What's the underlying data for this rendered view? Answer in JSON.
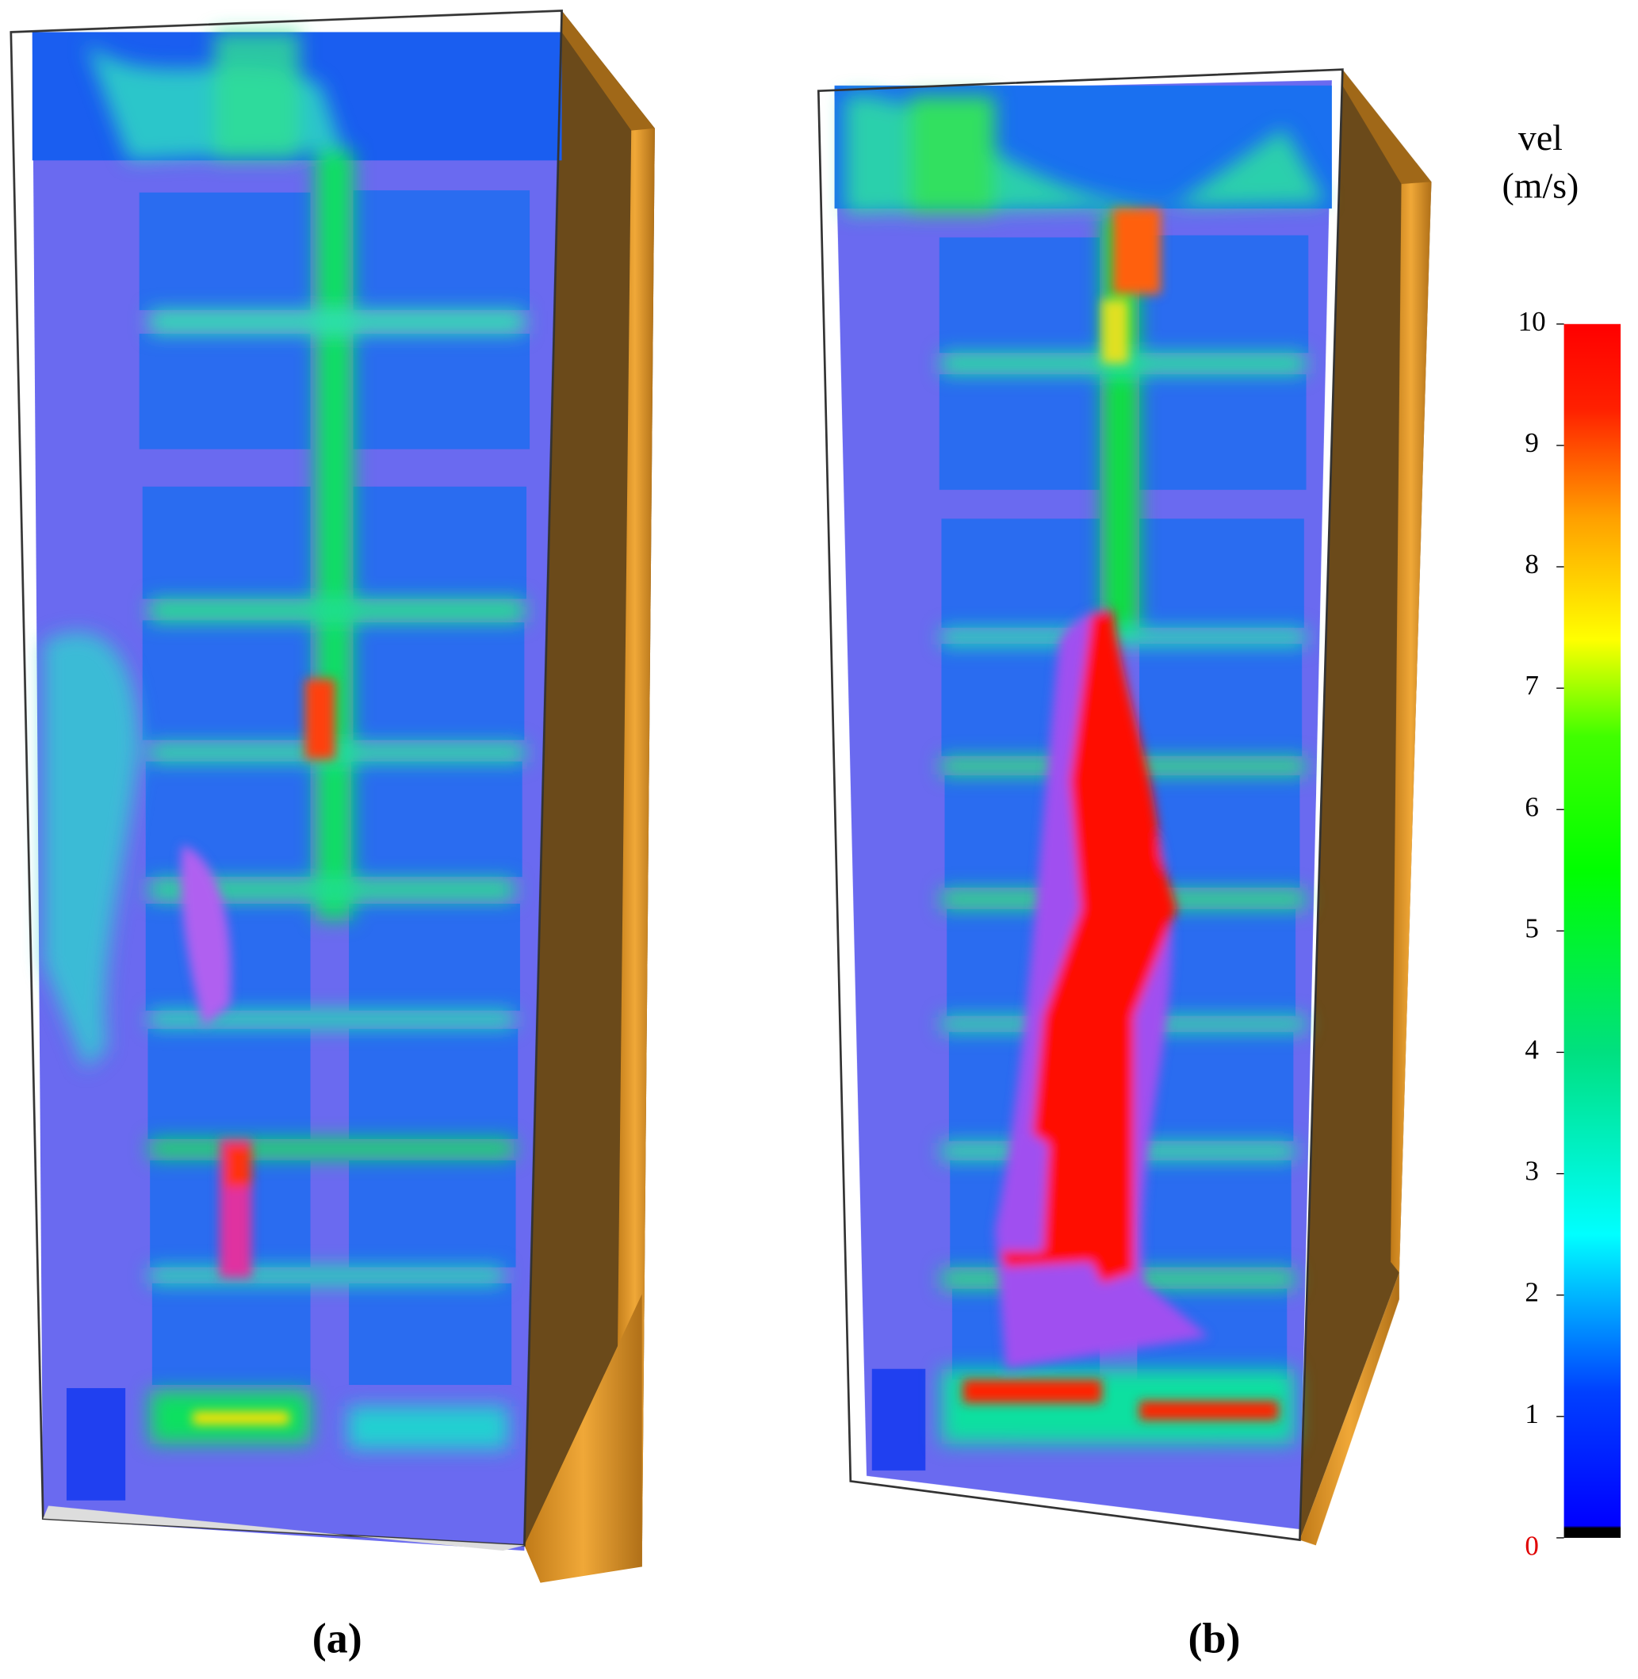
{
  "colorbar": {
    "title": [
      "vel",
      "(m/s)"
    ],
    "range": [
      0,
      10
    ],
    "ticks": [
      0,
      1,
      2,
      3,
      4,
      5,
      6,
      7,
      8,
      9,
      10
    ]
  },
  "panels": [
    {
      "label": "(a)"
    },
    {
      "label": "(b)"
    }
  ]
}
